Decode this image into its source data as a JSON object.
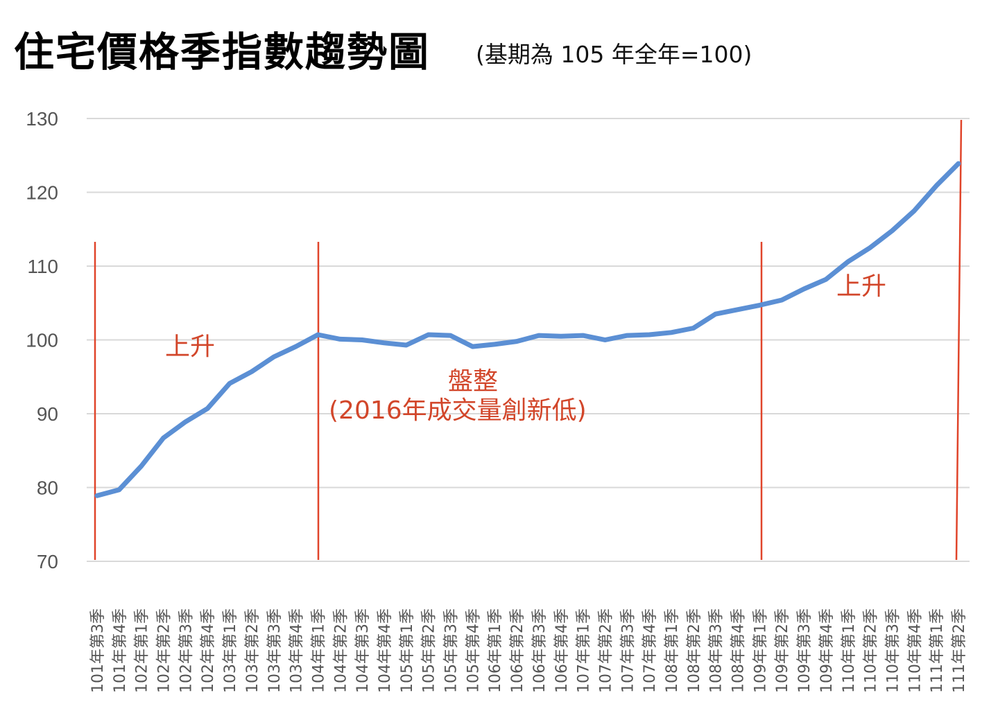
{
  "header": {
    "title": "住宅價格季指數趨勢圖",
    "subtitle": "(基期為 105 年全年=100)"
  },
  "colors": {
    "line": "#5b8fd4",
    "divider": "#e0442a",
    "annotation": "#d2462a",
    "grid": "#d9d9d9",
    "tick_text": "#555555"
  },
  "chart_data": {
    "type": "line",
    "title": "住宅價格季指數趨勢圖",
    "subtitle": "(基期為 105 年全年=100)",
    "xlabel": "",
    "ylabel": "",
    "ylim": [
      70,
      130
    ],
    "yticks": [
      70,
      80,
      90,
      100,
      110,
      120,
      130
    ],
    "grid": true,
    "legend": null,
    "categories": [
      "101年第3季",
      "101年第4季",
      "102年第1季",
      "102年第2季",
      "102年第3季",
      "102年第4季",
      "103年第1季",
      "103年第2季",
      "103年第3季",
      "103年第4季",
      "104年第1季",
      "104年第2季",
      "104年第3季",
      "104年第4季",
      "105年第1季",
      "105年第2季",
      "105年第3季",
      "105年第4季",
      "106年第1季",
      "106年第2季",
      "106年第3季",
      "106年第4季",
      "107年第1季",
      "107年第2季",
      "107年第3季",
      "107年第4季",
      "108年第1季",
      "108年第2季",
      "108年第3季",
      "108年第4季",
      "109年第1季",
      "109年第2季",
      "109年第3季",
      "109年第4季",
      "110年第1季",
      "110年第2季",
      "110年第3季",
      "110年第4季",
      "111年第1季",
      "111年第2季"
    ],
    "series": [
      {
        "name": "住宅價格季指數",
        "values": [
          78.9,
          79.7,
          82.9,
          86.7,
          88.9,
          90.7,
          94.1,
          95.7,
          97.7,
          99.1,
          100.7,
          100.1,
          100.0,
          99.6,
          99.3,
          100.7,
          100.6,
          99.1,
          99.4,
          99.8,
          100.6,
          100.5,
          100.6,
          100.0,
          100.6,
          100.7,
          101.0,
          101.6,
          103.5,
          104.1,
          104.7,
          105.4,
          106.9,
          108.2,
          110.6,
          112.5,
          114.8,
          117.5,
          120.9,
          123.9
        ]
      }
    ],
    "phase_dividers": [
      {
        "after_category": "101年第3季"
      },
      {
        "after_category": "104年第1季"
      },
      {
        "after_category": "109年第1季"
      },
      {
        "after_category": "111年第2季"
      }
    ],
    "annotations": [
      {
        "text": "上升",
        "phase": "101年第3季–104年第1季"
      },
      {
        "text": "盤整",
        "phase": "104年第1季–109年第1季"
      },
      {
        "text": "(2016年成交量創新低)",
        "phase": "104年第1季–109年第1季"
      },
      {
        "text": "上升",
        "phase": "109年第1季–111年第2季"
      }
    ]
  }
}
